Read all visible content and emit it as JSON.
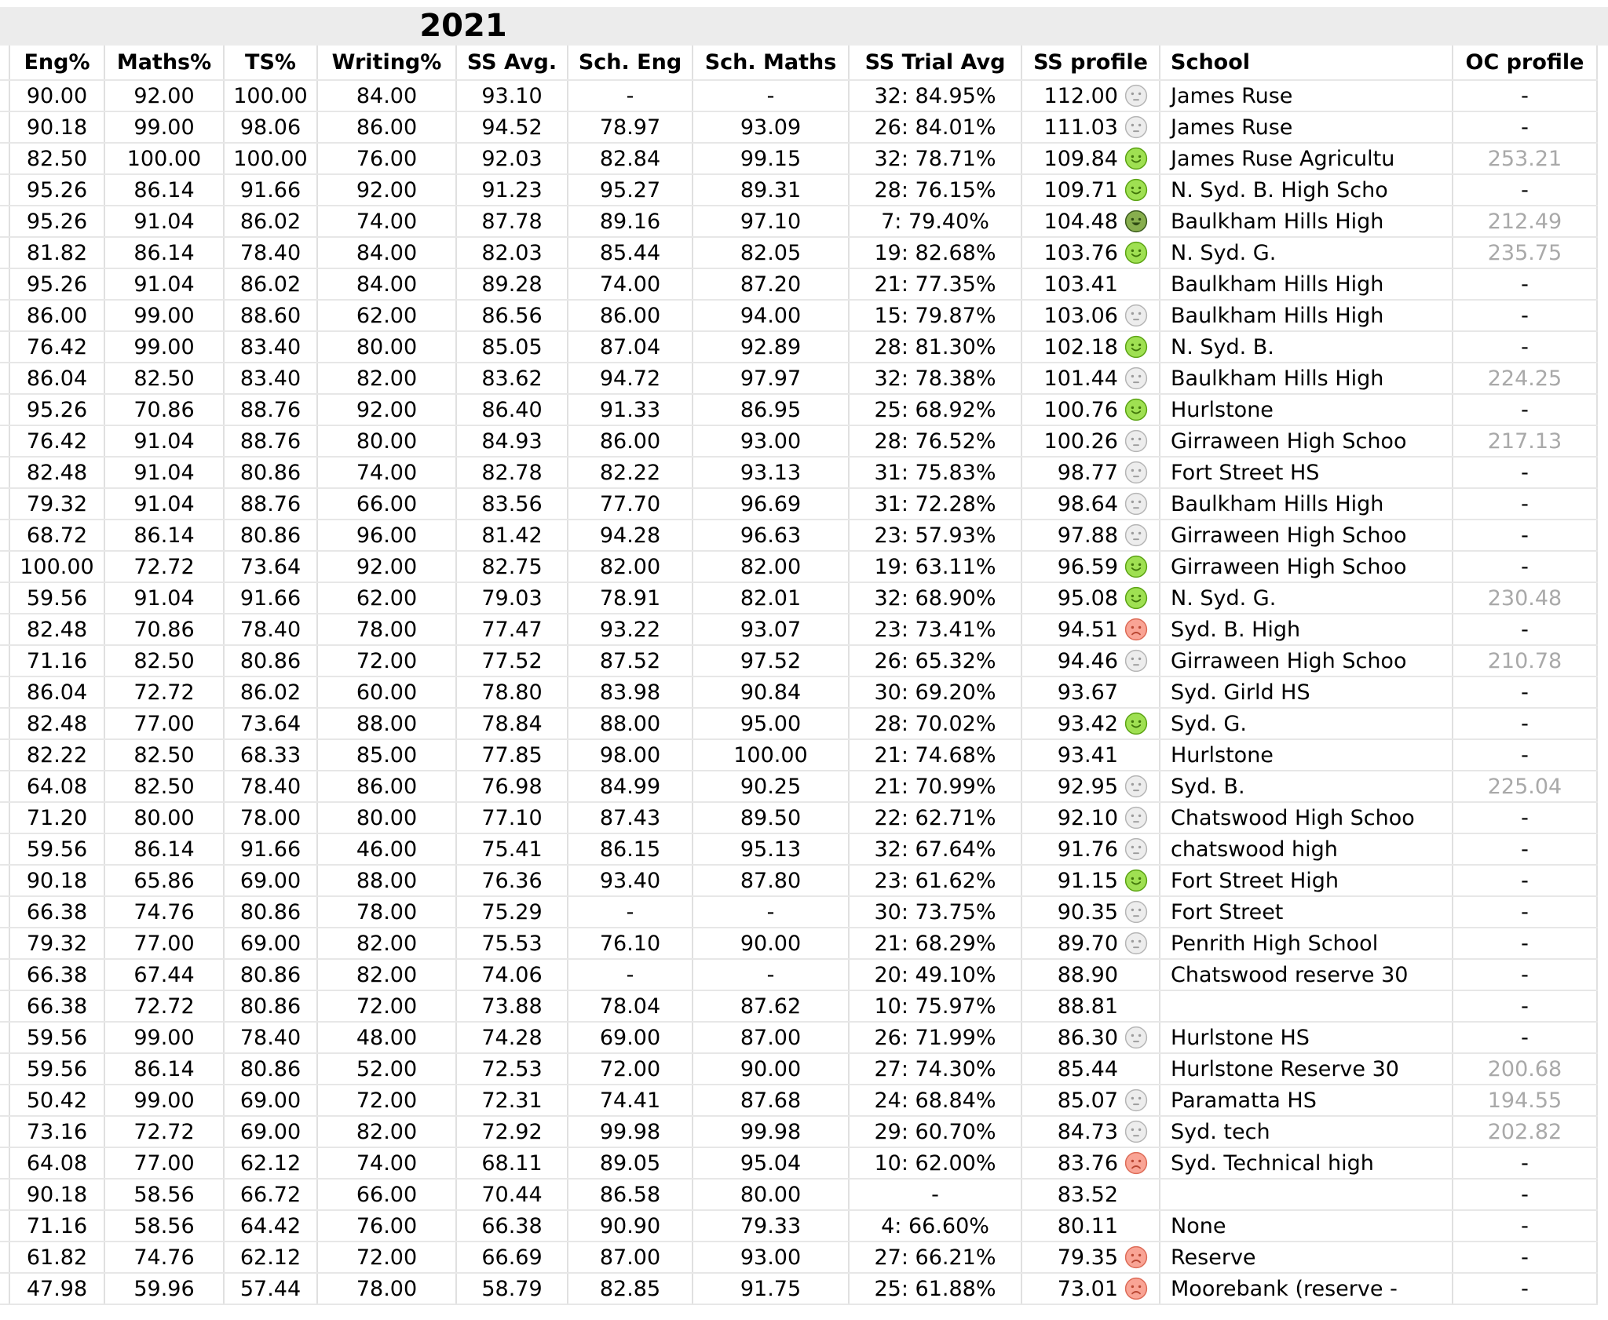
{
  "title": "2021",
  "colors": {
    "title_bg": "#ececec",
    "border_vertical": "#e0e0e0",
    "border_horizontal": "#e7e7e7",
    "oc_profile_text": "#a9a9a9",
    "text": "#000000"
  },
  "face_colors": {
    "neutral": {
      "fill": "#ededed",
      "stroke": "#b5b5b5",
      "feat": "#9b9b9b"
    },
    "smile": {
      "fill": "#9fe052",
      "stroke": "#5ba313",
      "feat": "#3f7409"
    },
    "laugh": {
      "fill": "#87ae4e",
      "stroke": "#3a5a1d",
      "feat": "#2e4a14"
    },
    "sad": {
      "fill": "#f9a495",
      "stroke": "#dd6b57",
      "feat": "#b94733"
    }
  },
  "face_icon_names": {
    "neutral": "neutral-face-icon",
    "smile": "green-smiley-icon",
    "laugh": "green-laugh-icon",
    "sad": "red-sad-icon"
  },
  "table": {
    "columns": [
      "Eng%",
      "Maths%",
      "TS%",
      "Writing%",
      "SS Avg.",
      "Sch. Eng",
      "Sch. Maths",
      "SS Trial Avg",
      "SS profile",
      "School",
      "OC profile"
    ],
    "column_keys": [
      "eng",
      "maths",
      "ts",
      "writing",
      "ss_avg",
      "sch_eng",
      "sch_maths",
      "ss_trial",
      "ss_profile",
      "face",
      "school",
      "oc"
    ],
    "rows": [
      [
        "90.00",
        "92.00",
        "100.00",
        "84.00",
        "93.10",
        "-",
        "-",
        "32: 84.95%",
        "112.00",
        "neutral",
        "James Ruse",
        "-"
      ],
      [
        "90.18",
        "99.00",
        "98.06",
        "86.00",
        "94.52",
        "78.97",
        "93.09",
        "26: 84.01%",
        "111.03",
        "neutral",
        "James Ruse",
        "-"
      ],
      [
        "82.50",
        "100.00",
        "100.00",
        "76.00",
        "92.03",
        "82.84",
        "99.15",
        "32: 78.71%",
        "109.84",
        "smile",
        "James Ruse Agricultu",
        "253.21"
      ],
      [
        "95.26",
        "86.14",
        "91.66",
        "92.00",
        "91.23",
        "95.27",
        "89.31",
        "28: 76.15%",
        "109.71",
        "smile",
        "N. Syd. B. High Scho",
        "-"
      ],
      [
        "95.26",
        "91.04",
        "86.02",
        "74.00",
        "87.78",
        "89.16",
        "97.10",
        "7: 79.40%",
        "104.48",
        "laugh",
        "Baulkham Hills High",
        "212.49"
      ],
      [
        "81.82",
        "86.14",
        "78.40",
        "84.00",
        "82.03",
        "85.44",
        "82.05",
        "19: 82.68%",
        "103.76",
        "smile",
        "N. Syd. G.",
        "235.75"
      ],
      [
        "95.26",
        "91.04",
        "86.02",
        "84.00",
        "89.28",
        "74.00",
        "87.20",
        "21: 77.35%",
        "103.41",
        "",
        "Baulkham Hills High",
        "-"
      ],
      [
        "86.00",
        "99.00",
        "88.60",
        "62.00",
        "86.56",
        "86.00",
        "94.00",
        "15: 79.87%",
        "103.06",
        "neutral",
        "Baulkham Hills High",
        "-"
      ],
      [
        "76.42",
        "99.00",
        "83.40",
        "80.00",
        "85.05",
        "87.04",
        "92.89",
        "28: 81.30%",
        "102.18",
        "smile",
        "N. Syd. B.",
        "-"
      ],
      [
        "86.04",
        "82.50",
        "83.40",
        "82.00",
        "83.62",
        "94.72",
        "97.97",
        "32: 78.38%",
        "101.44",
        "neutral",
        "Baulkham Hills High",
        "224.25"
      ],
      [
        "95.26",
        "70.86",
        "88.76",
        "92.00",
        "86.40",
        "91.33",
        "86.95",
        "25: 68.92%",
        "100.76",
        "smile",
        "Hurlstone",
        "-"
      ],
      [
        "76.42",
        "91.04",
        "88.76",
        "80.00",
        "84.93",
        "86.00",
        "93.00",
        "28: 76.52%",
        "100.26",
        "neutral",
        "Girraween High Schoo",
        "217.13"
      ],
      [
        "82.48",
        "91.04",
        "80.86",
        "74.00",
        "82.78",
        "82.22",
        "93.13",
        "31: 75.83%",
        "98.77",
        "neutral",
        "Fort Street HS",
        "-"
      ],
      [
        "79.32",
        "91.04",
        "88.76",
        "66.00",
        "83.56",
        "77.70",
        "96.69",
        "31: 72.28%",
        "98.64",
        "neutral",
        "Baulkham Hills High",
        "-"
      ],
      [
        "68.72",
        "86.14",
        "80.86",
        "96.00",
        "81.42",
        "94.28",
        "96.63",
        "23: 57.93%",
        "97.88",
        "neutral",
        "Girraween High Schoo",
        "-"
      ],
      [
        "100.00",
        "72.72",
        "73.64",
        "92.00",
        "82.75",
        "82.00",
        "82.00",
        "19: 63.11%",
        "96.59",
        "smile",
        "Girraween High Schoo",
        "-"
      ],
      [
        "59.56",
        "91.04",
        "91.66",
        "62.00",
        "79.03",
        "78.91",
        "82.01",
        "32: 68.90%",
        "95.08",
        "smile",
        "N. Syd. G.",
        "230.48"
      ],
      [
        "82.48",
        "70.86",
        "78.40",
        "78.00",
        "77.47",
        "93.22",
        "93.07",
        "23: 73.41%",
        "94.51",
        "sad",
        "Syd. B. High",
        "-"
      ],
      [
        "71.16",
        "82.50",
        "80.86",
        "72.00",
        "77.52",
        "87.52",
        "97.52",
        "26: 65.32%",
        "94.46",
        "neutral",
        "Girraween High Schoo",
        "210.78"
      ],
      [
        "86.04",
        "72.72",
        "86.02",
        "60.00",
        "78.80",
        "83.98",
        "90.84",
        "30: 69.20%",
        "93.67",
        "",
        "Syd. Girld HS",
        "-"
      ],
      [
        "82.48",
        "77.00",
        "73.64",
        "88.00",
        "78.84",
        "88.00",
        "95.00",
        "28: 70.02%",
        "93.42",
        "smile",
        "Syd. G.",
        "-"
      ],
      [
        "82.22",
        "82.50",
        "68.33",
        "85.00",
        "77.85",
        "98.00",
        "100.00",
        "21: 74.68%",
        "93.41",
        "",
        "Hurlstone",
        "-"
      ],
      [
        "64.08",
        "82.50",
        "78.40",
        "86.00",
        "76.98",
        "84.99",
        "90.25",
        "21: 70.99%",
        "92.95",
        "neutral",
        "Syd. B.",
        "225.04"
      ],
      [
        "71.20",
        "80.00",
        "78.00",
        "80.00",
        "77.10",
        "87.43",
        "89.50",
        "22: 62.71%",
        "92.10",
        "neutral",
        "Chatswood High Schoo",
        "-"
      ],
      [
        "59.56",
        "86.14",
        "91.66",
        "46.00",
        "75.41",
        "86.15",
        "95.13",
        "32: 67.64%",
        "91.76",
        "neutral",
        "chatswood high",
        "-"
      ],
      [
        "90.18",
        "65.86",
        "69.00",
        "88.00",
        "76.36",
        "93.40",
        "87.80",
        "23: 61.62%",
        "91.15",
        "smile",
        "Fort Street High",
        "-"
      ],
      [
        "66.38",
        "74.76",
        "80.86",
        "78.00",
        "75.29",
        "-",
        "-",
        "30: 73.75%",
        "90.35",
        "neutral",
        "Fort Street",
        "-"
      ],
      [
        "79.32",
        "77.00",
        "69.00",
        "82.00",
        "75.53",
        "76.10",
        "90.00",
        "21: 68.29%",
        "89.70",
        "neutral",
        "Penrith High School",
        "-"
      ],
      [
        "66.38",
        "67.44",
        "80.86",
        "82.00",
        "74.06",
        "-",
        "-",
        "20: 49.10%",
        "88.90",
        "",
        "Chatswood reserve 30",
        "-"
      ],
      [
        "66.38",
        "72.72",
        "80.86",
        "72.00",
        "73.88",
        "78.04",
        "87.62",
        "10: 75.97%",
        "88.81",
        "",
        "",
        "-"
      ],
      [
        "59.56",
        "99.00",
        "78.40",
        "48.00",
        "74.28",
        "69.00",
        "87.00",
        "26: 71.99%",
        "86.30",
        "neutral",
        "Hurlstone HS",
        "-"
      ],
      [
        "59.56",
        "86.14",
        "80.86",
        "52.00",
        "72.53",
        "72.00",
        "90.00",
        "27: 74.30%",
        "85.44",
        "",
        "Hurlstone Reserve 30",
        "200.68"
      ],
      [
        "50.42",
        "99.00",
        "69.00",
        "72.00",
        "72.31",
        "74.41",
        "87.68",
        "24: 68.84%",
        "85.07",
        "neutral",
        "Paramatta HS",
        "194.55"
      ],
      [
        "73.16",
        "72.72",
        "69.00",
        "82.00",
        "72.92",
        "99.98",
        "99.98",
        "29: 60.70%",
        "84.73",
        "neutral",
        "Syd. tech",
        "202.82"
      ],
      [
        "64.08",
        "77.00",
        "62.12",
        "74.00",
        "68.11",
        "89.05",
        "95.04",
        "10: 62.00%",
        "83.76",
        "sad",
        "Syd. Technical high",
        "-"
      ],
      [
        "90.18",
        "58.56",
        "66.72",
        "66.00",
        "70.44",
        "86.58",
        "80.00",
        "-",
        "83.52",
        "",
        "",
        "-"
      ],
      [
        "71.16",
        "58.56",
        "64.42",
        "76.00",
        "66.38",
        "90.90",
        "79.33",
        "4: 66.60%",
        "80.11",
        "",
        "None",
        "-"
      ],
      [
        "61.82",
        "74.76",
        "62.12",
        "72.00",
        "66.69",
        "87.00",
        "93.00",
        "27: 66.21%",
        "79.35",
        "sad",
        "Reserve",
        "-"
      ],
      [
        "47.98",
        "59.96",
        "57.44",
        "78.00",
        "58.79",
        "82.85",
        "91.75",
        "25: 61.88%",
        "73.01",
        "sad",
        "Moorebank (reserve -",
        "-"
      ]
    ]
  }
}
